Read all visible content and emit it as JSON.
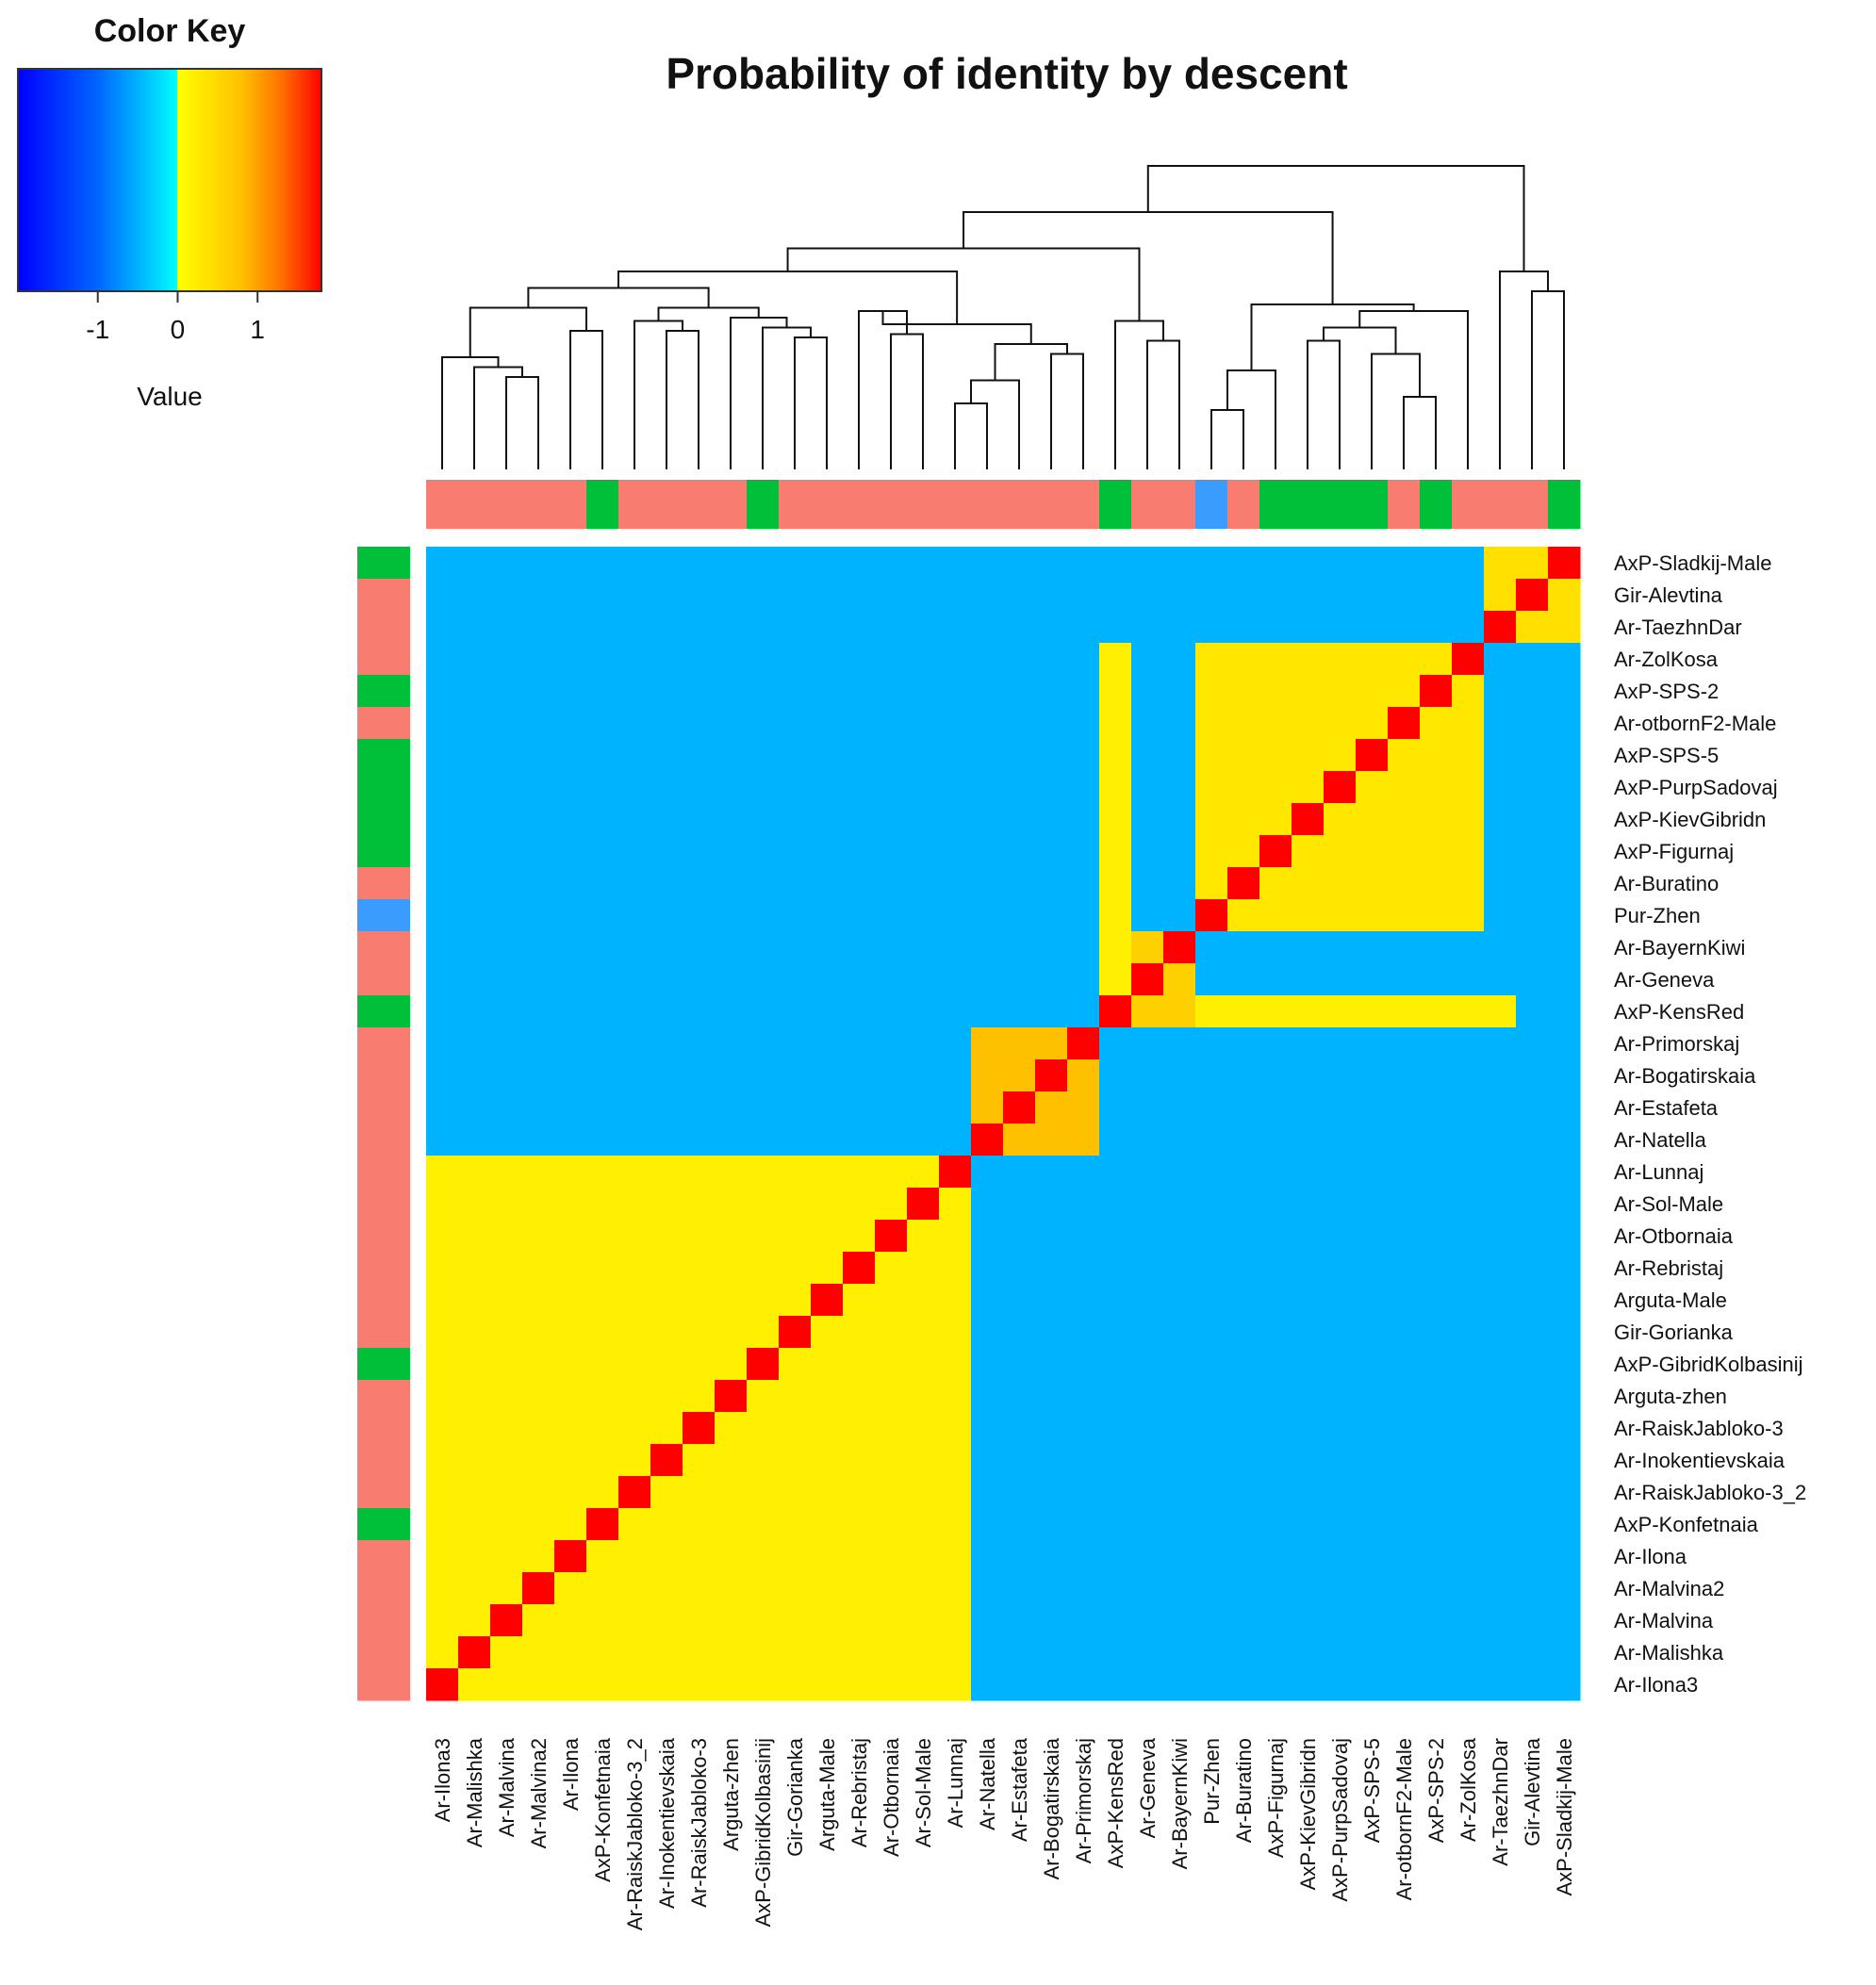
{
  "title": "Probability of identity by descent",
  "color_key": {
    "title": "Color Key",
    "xlabel": "Value",
    "ticks": [
      "-1",
      "0",
      "1"
    ],
    "tick_values": [
      -1,
      0,
      1
    ],
    "range": [
      -2,
      1.8
    ],
    "stops": [
      {
        "v": -2.0,
        "c": "#0000ff"
      },
      {
        "v": -1.0,
        "c": "#0066ff"
      },
      {
        "v": -0.001,
        "c": "#00ffff"
      },
      {
        "v": 0.0,
        "c": "#ffff00"
      },
      {
        "v": 0.8,
        "c": "#ffc000"
      },
      {
        "v": 1.3,
        "c": "#ff7000"
      },
      {
        "v": 1.8,
        "c": "#ff0000"
      }
    ]
  },
  "group_colors": {
    "Ar": "#f87c70",
    "AxP": "#00c03a",
    "Pur": "#3a9cff"
  },
  "chart_data": {
    "type": "heatmap",
    "title": "Probability of identity by descent",
    "value_label": "Value",
    "column_labels": [
      "Ar-Ilona3",
      "Ar-Malishka",
      "Ar-Malvina",
      "Ar-Malvina2",
      "Ar-Ilona",
      "AxP-Konfetnaia",
      "Ar-RaiskJabloko-3_2",
      "Ar-Inokentievskaia",
      "Ar-RaiskJabloko-3",
      "Arguta-zhen",
      "AxP-GibridKolbasinij",
      "Gir-Gorianka",
      "Arguta-Male",
      "Ar-Rebristaj",
      "Ar-Otbornaia",
      "Ar-Sol-Male",
      "Ar-Lunnaj",
      "Ar-Natella",
      "Ar-Estafeta",
      "Ar-Bogatirskaia",
      "Ar-Primorskaj",
      "AxP-KensRed",
      "Ar-Geneva",
      "Ar-BayernKiwi",
      "Pur-Zhen",
      "Ar-Buratino",
      "AxP-Figurnaj",
      "AxP-KievGibridn",
      "AxP-PurpSadovaj",
      "AxP-SPS-5",
      "Ar-otbornF2-Male",
      "AxP-SPS-2",
      "Ar-ZolKosa",
      "Ar-TaezhnDar",
      "Gir-Alevtina",
      "AxP-Sladkij-Male"
    ],
    "row_labels": [
      "AxP-Sladkij-Male",
      "Gir-Alevtina",
      "Ar-TaezhnDar",
      "Ar-ZolKosa",
      "AxP-SPS-2",
      "Ar-otbornF2-Male",
      "AxP-SPS-5",
      "AxP-PurpSadovaj",
      "AxP-KievGibridn",
      "AxP-Figurnaj",
      "Ar-Buratino",
      "Pur-Zhen",
      "Ar-BayernKiwi",
      "Ar-Geneva",
      "AxP-KensRed",
      "Ar-Primorskaj",
      "Ar-Bogatirskaia",
      "Ar-Estafeta",
      "Ar-Natella",
      "Ar-Lunnaj",
      "Ar-Sol-Male",
      "Ar-Otbornaia",
      "Ar-Rebristaj",
      "Arguta-Male",
      "Gir-Gorianka",
      "AxP-GibridKolbasinij",
      "Arguta-zhen",
      "Ar-RaiskJabloko-3",
      "Ar-Inokentievskaia",
      "Ar-RaiskJabloko-3_2",
      "AxP-Konfetnaia",
      "Ar-Ilona",
      "Ar-Malvina2",
      "Ar-Malvina",
      "Ar-Malishka",
      "Ar-Ilona3"
    ],
    "column_groups": [
      "Ar",
      "Ar",
      "Ar",
      "Ar",
      "Ar",
      "AxP",
      "Ar",
      "Ar",
      "Ar",
      "Ar",
      "AxP",
      "Ar",
      "Ar",
      "Ar",
      "Ar",
      "Ar",
      "Ar",
      "Ar",
      "Ar",
      "Ar",
      "Ar",
      "AxP",
      "Ar",
      "Ar",
      "Pur",
      "Ar",
      "AxP",
      "AxP",
      "AxP",
      "AxP",
      "Ar",
      "AxP",
      "Ar",
      "Ar",
      "Ar",
      "AxP"
    ],
    "row_groups": [
      "AxP",
      "Ar",
      "Ar",
      "Ar",
      "AxP",
      "Ar",
      "AxP",
      "AxP",
      "AxP",
      "AxP",
      "Ar",
      "Pur",
      "Ar",
      "Ar",
      "AxP",
      "Ar",
      "Ar",
      "Ar",
      "Ar",
      "Ar",
      "Ar",
      "Ar",
      "Ar",
      "Ar",
      "Ar",
      "AxP",
      "Ar",
      "Ar",
      "Ar",
      "Ar",
      "AxP",
      "Ar",
      "Ar",
      "Ar",
      "Ar",
      "Ar"
    ],
    "diagonal_value": 1.8,
    "background_value": -0.5,
    "value_blocks": [
      {
        "rows": [
          "AxP-Figurnaj",
          "AxP-KievGibridn",
          "AxP-PurpSadovaj",
          "AxP-SPS-5",
          "Ar-otbornF2-Male",
          "AxP-SPS-2",
          "Ar-ZolKosa",
          "Ar-Buratino",
          "Pur-Zhen"
        ],
        "cols": [
          "Pur-Zhen",
          "Ar-Buratino",
          "AxP-Figurnaj",
          "AxP-KievGibridn",
          "AxP-PurpSadovaj",
          "AxP-SPS-5",
          "Ar-otbornF2-Male",
          "AxP-SPS-2",
          "Ar-ZolKosa"
        ],
        "value": 0.3
      },
      {
        "rows": [
          "Ar-BayernKiwi",
          "Ar-Geneva",
          "AxP-KensRed"
        ],
        "cols": [
          "AxP-KensRed",
          "Ar-Geneva",
          "Ar-BayernKiwi"
        ],
        "value": 0.6
      },
      {
        "rows": [
          "AxP-KensRed"
        ],
        "cols": [
          "Pur-Zhen",
          "Ar-Buratino",
          "AxP-Figurnaj",
          "AxP-KievGibridn",
          "AxP-PurpSadovaj",
          "AxP-SPS-5",
          "Ar-otbornF2-Male",
          "AxP-SPS-2",
          "Ar-ZolKosa",
          "Ar-TaezhnDar"
        ],
        "value": 0.2
      },
      {
        "rows": [
          "Ar-ZolKosa",
          "AxP-SPS-2",
          "Ar-otbornF2-Male",
          "AxP-SPS-5",
          "AxP-PurpSadovaj",
          "AxP-KievGibridn",
          "AxP-Figurnaj",
          "Ar-Buratino",
          "Pur-Zhen",
          "Ar-BayernKiwi",
          "Ar-Geneva"
        ],
        "cols": [
          "AxP-KensRed"
        ],
        "value": 0.2
      },
      {
        "rows": [
          "Ar-Primorskaj",
          "Ar-Bogatirskaia",
          "Ar-Estafeta",
          "Ar-Natella"
        ],
        "cols": [
          "Ar-Natella",
          "Ar-Estafeta",
          "Ar-Bogatirskaia",
          "Ar-Primorskaj"
        ],
        "value": 0.8
      },
      {
        "rows": [
          "Ar-Lunnaj",
          "Ar-Sol-Male",
          "Ar-Otbornaia",
          "Ar-Rebristaj",
          "Arguta-Male",
          "Gir-Gorianka",
          "AxP-GibridKolbasinij",
          "Arguta-zhen",
          "Ar-RaiskJabloko-3",
          "Ar-Inokentievskaia",
          "Ar-RaiskJabloko-3_2",
          "AxP-Konfetnaia",
          "Ar-Ilona",
          "Ar-Malvina2",
          "Ar-Malvina",
          "Ar-Malishka",
          "Ar-Ilona3"
        ],
        "cols": [
          "Ar-Ilona3",
          "Ar-Malishka",
          "Ar-Malvina",
          "Ar-Malvina2",
          "Ar-Ilona",
          "AxP-Konfetnaia",
          "Ar-RaiskJabloko-3_2",
          "Ar-Inokentievskaia",
          "Ar-RaiskJabloko-3",
          "Arguta-zhen",
          "AxP-GibridKolbasinij",
          "Gir-Gorianka",
          "Arguta-Male",
          "Ar-Rebristaj",
          "Ar-Otbornaia",
          "Ar-Sol-Male",
          "Ar-Lunnaj"
        ],
        "value": 0.2
      },
      {
        "rows": [
          "AxP-Sladkij-Male",
          "Gir-Alevtina",
          "Ar-TaezhnDar"
        ],
        "cols": [
          "Ar-TaezhnDar",
          "Gir-Alevtina",
          "AxP-Sladkij-Male"
        ],
        "value": 0.4
      }
    ],
    "dendrogram": "column clustering tree (top)"
  }
}
